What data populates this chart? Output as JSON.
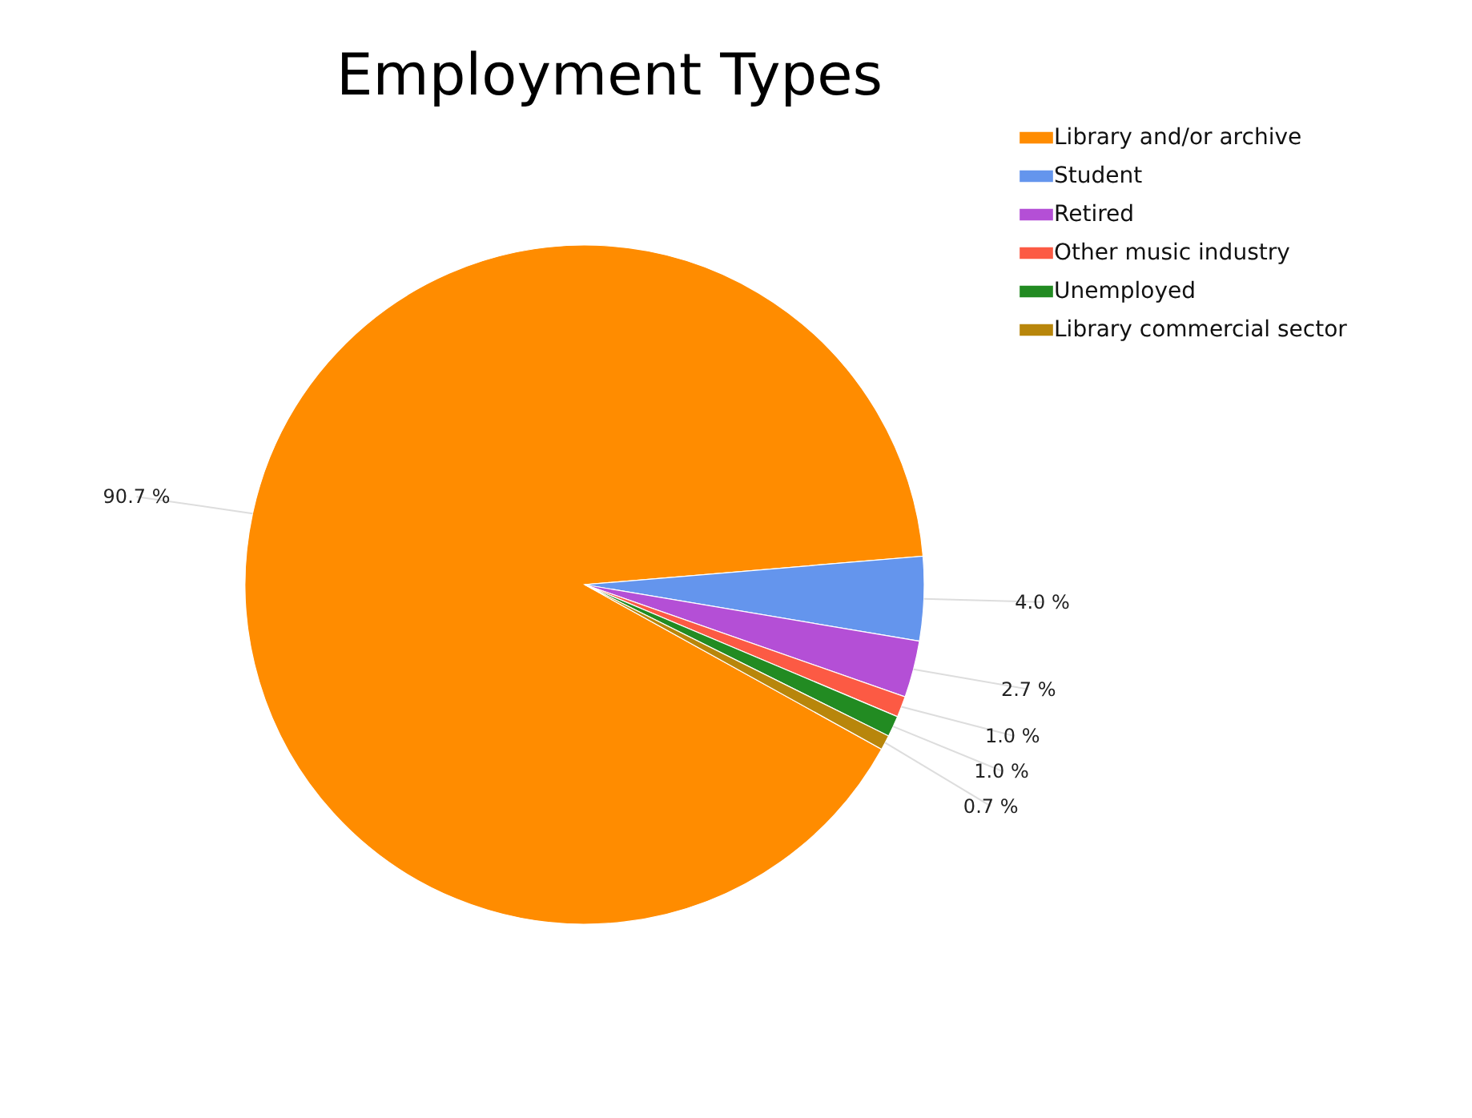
{
  "chart_data": {
    "type": "pie",
    "title": "Employment Types",
    "categories": [
      "Library and/or archive",
      "Student",
      "Retired",
      "Other music industry",
      "Unemployed",
      "Library commercial sector"
    ],
    "values": [
      90.7,
      4.0,
      2.7,
      1.0,
      1.0,
      0.7
    ],
    "colors": [
      "#ff8c00",
      "#6495ed",
      "#b44fd6",
      "#fc5a44",
      "#228b22",
      "#b8860b"
    ],
    "value_labels": [
      "90.7 %",
      "4.0 %",
      "2.7 %",
      "1.0 %",
      "1.0 %",
      "0.7 %"
    ],
    "legend": "top right"
  }
}
